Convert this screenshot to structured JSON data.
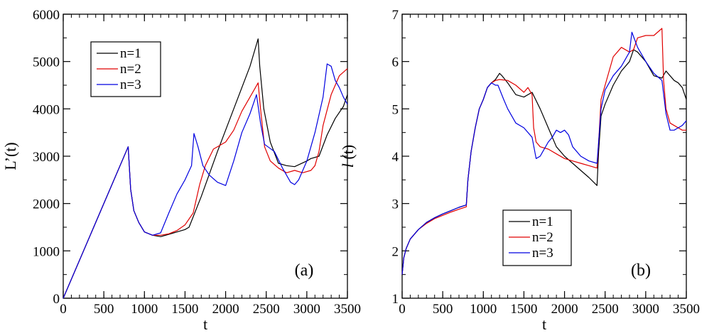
{
  "chart_data": [
    {
      "type": "line",
      "panel_label": "(a)",
      "xlabel": "t",
      "ylabel": "L’(t)",
      "xlim": [
        0,
        3500
      ],
      "ylim": [
        0,
        6000
      ],
      "xticks": [
        0,
        500,
        1000,
        1500,
        2000,
        2500,
        3000,
        3500
      ],
      "yticks": [
        0,
        1000,
        2000,
        3000,
        4000,
        5000,
        6000
      ],
      "xtick_labels": [
        "0",
        "500",
        "1000",
        "1500",
        "2000",
        "2500",
        "3000",
        "3500"
      ],
      "ytick_labels": [
        "0",
        "1000",
        "2000",
        "3000",
        "4000",
        "5000",
        "6000"
      ],
      "legend_position": "top-left",
      "series": [
        {
          "name": "n=1",
          "color": "#000000",
          "x": [
            0,
            800,
            830,
            870,
            930,
            1000,
            1100,
            1200,
            1300,
            1400,
            1500,
            1550,
            1700,
            1900,
            2100,
            2300,
            2400,
            2420,
            2470,
            2550,
            2650,
            2750,
            2850,
            3000,
            3050,
            3150,
            3250,
            3350,
            3450,
            3500
          ],
          "y": [
            0,
            3200,
            2300,
            1850,
            1600,
            1400,
            1330,
            1300,
            1350,
            1400,
            1450,
            1500,
            2150,
            3100,
            4000,
            4900,
            5480,
            4900,
            4000,
            3300,
            2850,
            2800,
            2780,
            2900,
            2950,
            3000,
            3450,
            3800,
            4050,
            4300
          ]
        },
        {
          "name": "n=2",
          "color": "#e00000",
          "x": [
            0,
            800,
            830,
            870,
            930,
            1000,
            1100,
            1200,
            1300,
            1400,
            1500,
            1600,
            1680,
            1750,
            1850,
            2000,
            2100,
            2200,
            2300,
            2400,
            2430,
            2480,
            2550,
            2650,
            2750,
            2850,
            2950,
            3050,
            3100,
            3150,
            3200,
            3300,
            3400,
            3500
          ],
          "y": [
            0,
            3200,
            2300,
            1850,
            1600,
            1400,
            1330,
            1330,
            1360,
            1430,
            1550,
            1800,
            2400,
            2800,
            3150,
            3300,
            3550,
            3950,
            4250,
            4550,
            4000,
            3200,
            2900,
            2750,
            2650,
            2700,
            2650,
            2700,
            2800,
            3100,
            3650,
            4300,
            4700,
            4850
          ]
        },
        {
          "name": "n=3",
          "color": "#0000e0",
          "x": [
            0,
            800,
            830,
            870,
            930,
            1000,
            1100,
            1200,
            1300,
            1400,
            1500,
            1580,
            1610,
            1660,
            1720,
            1800,
            1900,
            2000,
            2100,
            2200,
            2300,
            2380,
            2430,
            2480,
            2600,
            2700,
            2800,
            2850,
            2900,
            3000,
            3100,
            3200,
            3250,
            3300,
            3350,
            3400,
            3450,
            3500
          ],
          "y": [
            0,
            3200,
            2300,
            1850,
            1600,
            1400,
            1330,
            1380,
            1800,
            2200,
            2500,
            2800,
            3480,
            3200,
            2800,
            2600,
            2450,
            2380,
            2900,
            3500,
            3900,
            4300,
            3700,
            3250,
            3100,
            2750,
            2450,
            2400,
            2500,
            2900,
            3500,
            4250,
            4950,
            4900,
            4600,
            4450,
            4250,
            4100
          ]
        }
      ]
    },
    {
      "type": "line",
      "panel_label": "(b)",
      "xlabel": "t",
      "ylabel_italic": "l",
      "ylabel": "(t)",
      "xlim": [
        0,
        3500
      ],
      "ylim": [
        1,
        7
      ],
      "xticks": [
        0,
        500,
        1000,
        1500,
        2000,
        2500,
        3000,
        3500
      ],
      "yticks": [
        1,
        2,
        3,
        4,
        5,
        6,
        7
      ],
      "xtick_labels": [
        "0",
        "500",
        "1000",
        "1500",
        "2000",
        "2500",
        "3000",
        "3500"
      ],
      "ytick_labels": [
        "1",
        "2",
        "3",
        "4",
        "5",
        "6",
        "7"
      ],
      "legend_position": "bottom-center",
      "series": [
        {
          "name": "n=1",
          "color": "#000000",
          "x": [
            0,
            20,
            50,
            100,
            200,
            300,
            400,
            500,
            600,
            700,
            790,
            810,
            850,
            900,
            950,
            1000,
            1050,
            1100,
            1150,
            1200,
            1230,
            1300,
            1400,
            1500,
            1600,
            1700,
            1800,
            1900,
            2000,
            2100,
            2200,
            2300,
            2400,
            2420,
            2450,
            2500,
            2600,
            2700,
            2800,
            2850,
            2900,
            3000,
            3100,
            3200,
            3250,
            3300,
            3350,
            3400,
            3450,
            3500
          ],
          "y": [
            1.5,
            1.85,
            2.05,
            2.25,
            2.45,
            2.6,
            2.7,
            2.78,
            2.85,
            2.92,
            2.97,
            3.5,
            4.1,
            4.6,
            5.0,
            5.2,
            5.45,
            5.55,
            5.62,
            5.75,
            5.7,
            5.55,
            5.3,
            5.25,
            5.35,
            5.0,
            4.6,
            4.2,
            4.0,
            3.85,
            3.7,
            3.55,
            3.38,
            4.1,
            4.85,
            5.1,
            5.5,
            5.8,
            6.0,
            6.25,
            6.2,
            6.0,
            5.7,
            5.65,
            5.8,
            5.7,
            5.6,
            5.55,
            5.45,
            5.2
          ]
        },
        {
          "name": "n=2",
          "color": "#e00000",
          "x": [
            0,
            20,
            50,
            100,
            200,
            300,
            400,
            500,
            600,
            700,
            790,
            810,
            850,
            900,
            950,
            1000,
            1050,
            1100,
            1150,
            1200,
            1300,
            1400,
            1500,
            1550,
            1600,
            1620,
            1650,
            1700,
            1800,
            1900,
            2000,
            2100,
            2200,
            2300,
            2400,
            2420,
            2450,
            2500,
            2600,
            2700,
            2800,
            2850,
            2900,
            3000,
            3100,
            3200,
            3220,
            3250,
            3300,
            3350,
            3400,
            3450,
            3500
          ],
          "y": [
            1.5,
            1.85,
            2.05,
            2.25,
            2.45,
            2.58,
            2.68,
            2.75,
            2.82,
            2.88,
            2.93,
            3.5,
            4.1,
            4.6,
            5.0,
            5.2,
            5.45,
            5.55,
            5.6,
            5.62,
            5.6,
            5.5,
            5.35,
            5.45,
            5.3,
            4.6,
            4.3,
            4.2,
            4.15,
            4.05,
            3.95,
            3.9,
            3.85,
            3.8,
            3.75,
            4.3,
            5.2,
            5.5,
            6.1,
            6.3,
            6.2,
            6.25,
            6.5,
            6.55,
            6.55,
            6.7,
            5.6,
            5.0,
            4.7,
            4.65,
            4.6,
            4.55,
            4.55
          ]
        },
        {
          "name": "n=3",
          "color": "#0000e0",
          "x": [
            0,
            20,
            50,
            100,
            200,
            300,
            400,
            500,
            600,
            700,
            790,
            810,
            850,
            900,
            950,
            1000,
            1050,
            1100,
            1150,
            1180,
            1250,
            1300,
            1400,
            1500,
            1600,
            1650,
            1700,
            1800,
            1850,
            1900,
            1950,
            2000,
            2050,
            2100,
            2200,
            2300,
            2400,
            2420,
            2450,
            2500,
            2600,
            2700,
            2750,
            2800,
            2830,
            2900,
            3000,
            3100,
            3200,
            3250,
            3300,
            3350,
            3400,
            3450,
            3500
          ],
          "y": [
            1.5,
            1.85,
            2.05,
            2.25,
            2.45,
            2.6,
            2.7,
            2.78,
            2.85,
            2.92,
            2.97,
            3.5,
            4.1,
            4.6,
            5.0,
            5.2,
            5.45,
            5.55,
            5.5,
            5.5,
            5.2,
            5.0,
            4.7,
            4.6,
            4.4,
            3.95,
            4.0,
            4.3,
            4.4,
            4.55,
            4.5,
            4.55,
            4.45,
            4.2,
            4.0,
            3.9,
            3.85,
            4.3,
            5.0,
            5.4,
            5.7,
            5.9,
            6.05,
            6.2,
            6.62,
            6.3,
            6.0,
            5.75,
            5.6,
            4.9,
            4.55,
            4.55,
            4.6,
            4.65,
            4.75
          ]
        }
      ]
    }
  ]
}
